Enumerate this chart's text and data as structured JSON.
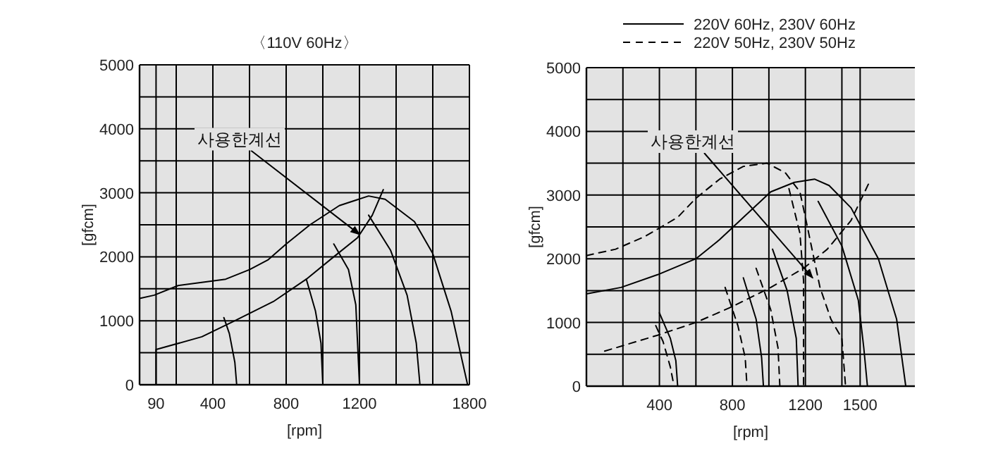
{
  "chart_data": [
    {
      "type": "line",
      "title": "〈110V 60Hz〉",
      "xlabel": "[rpm]",
      "ylabel": "[gfcm]",
      "xlim": [
        0,
        1800
      ],
      "ylim": [
        0,
        5000
      ],
      "xticks": [
        90,
        {
          "value": 200,
          "label": null
        },
        400,
        {
          "value": 600,
          "label": null
        },
        800,
        {
          "value": 1000,
          "label": null
        },
        1200,
        {
          "value": 1400,
          "label": null
        },
        {
          "value": 1600,
          "label": null
        },
        1800
      ],
      "yticks": [
        0,
        {
          "value": 500,
          "label": null
        },
        1000,
        {
          "value": 1500,
          "label": null
        },
        2000,
        {
          "value": 2500,
          "label": null
        },
        3000,
        {
          "value": 3500,
          "label": null
        },
        4000,
        {
          "value": 4500,
          "label": null
        },
        5000
      ],
      "grid": true,
      "line_style": "solid",
      "series": [
        {
          "color": "#000000",
          "x": [
            0,
            80,
            210,
            470,
            600,
            700,
            800,
            930,
            1090,
            1250,
            1340,
            1500,
            1600,
            1700,
            1790
          ],
          "values": [
            1350,
            1400,
            1550,
            1650,
            1800,
            1950,
            2200,
            2500,
            2800,
            2950,
            2900,
            2550,
            2050,
            1150,
            0
          ]
        },
        {
          "color": "#000000",
          "x": [
            90,
            90,
            340,
            520,
            730,
            910,
            1060,
            1190,
            1270,
            1330
          ],
          "values": [
            0,
            550,
            750,
            1000,
            1300,
            1650,
            2000,
            2300,
            2650,
            3050
          ]
        },
        {
          "color": "#000000",
          "x": [
            460,
            490,
            520,
            530
          ],
          "values": [
            1050,
            800,
            350,
            0
          ]
        },
        {
          "color": "#000000",
          "x": [
            910,
            960,
            990,
            1000
          ],
          "values": [
            1650,
            1150,
            650,
            0
          ]
        },
        {
          "color": "#000000",
          "x": [
            1060,
            1140,
            1180,
            1200
          ],
          "values": [
            2200,
            1800,
            1250,
            0
          ]
        },
        {
          "color": "#000000",
          "x": [
            1250,
            1370,
            1460,
            1510,
            1530
          ],
          "values": [
            2650,
            2100,
            1400,
            650,
            0
          ]
        }
      ],
      "annotations": [
        {
          "text": "사용한계선",
          "x": 1200,
          "y": 2350
        }
      ]
    },
    {
      "type": "line",
      "xlabel": "[rpm]",
      "ylabel": "[gfcm]",
      "xlim": [
        0,
        1800
      ],
      "ylim": [
        0,
        5000
      ],
      "xticks": [
        {
          "value": 200,
          "label": null
        },
        400,
        {
          "value": 600,
          "label": null
        },
        800,
        {
          "value": 1000,
          "label": null
        },
        1200,
        {
          "value": 1400,
          "label": null
        },
        1500
      ],
      "yticks": [
        0,
        {
          "value": 500,
          "label": null
        },
        1000,
        {
          "value": 1500,
          "label": null
        },
        2000,
        {
          "value": 2500,
          "label": null
        },
        3000,
        {
          "value": 3500,
          "label": null
        },
        4000,
        {
          "value": 4500,
          "label": null
        },
        5000
      ],
      "grid": true,
      "legend": "top",
      "series": [
        {
          "name": "220V 60Hz, 230V 60Hz",
          "line_style": "solid",
          "color": "#000000",
          "x": [
            0,
            190,
            390,
            600,
            730,
            860,
            1010,
            1140,
            1250,
            1330,
            1450,
            1600,
            1700,
            1750
          ],
          "values": [
            1450,
            1550,
            1750,
            2000,
            2300,
            2650,
            3050,
            3200,
            3250,
            3150,
            2800,
            2000,
            1050,
            0
          ]
        },
        {
          "line_style": "solid",
          "color": "#000000",
          "x": [
            400,
            460,
            490,
            500
          ],
          "values": [
            1150,
            750,
            400,
            0
          ]
        },
        {
          "line_style": "solid",
          "color": "#000000",
          "x": [
            860,
            930,
            960,
            970
          ],
          "values": [
            1700,
            1050,
            450,
            0
          ]
        },
        {
          "line_style": "solid",
          "color": "#000000",
          "x": [
            1020,
            1100,
            1150,
            1160
          ],
          "values": [
            2150,
            1500,
            750,
            0
          ]
        },
        {
          "line_style": "solid",
          "color": "#000000",
          "x": [
            1270,
            1400,
            1490,
            1520,
            1540
          ],
          "values": [
            2900,
            2200,
            1350,
            600,
            0
          ]
        },
        {
          "name": "220V 50Hz, 230V 50Hz",
          "line_style": "dashed",
          "color": "#000000",
          "x": [
            0,
            160,
            320,
            500,
            600,
            730,
            860,
            990,
            1090,
            1170,
            1200,
            1240,
            1280,
            1340,
            1400,
            1420
          ],
          "values": [
            2050,
            2150,
            2350,
            2650,
            2950,
            3250,
            3450,
            3500,
            3350,
            3050,
            2650,
            2100,
            1550,
            1050,
            750,
            0
          ]
        },
        {
          "line_style": "dashed",
          "color": "#000000",
          "x": [
            100,
            390,
            600,
            800,
            1010,
            1190,
            1320,
            1450,
            1550
          ],
          "values": [
            550,
            800,
            1000,
            1250,
            1550,
            1850,
            2150,
            2600,
            3200
          ]
        },
        {
          "line_style": "dashed",
          "color": "#000000",
          "x": [
            380,
            420,
            460,
            480
          ],
          "values": [
            950,
            700,
            300,
            0
          ]
        },
        {
          "line_style": "dashed",
          "color": "#000000",
          "x": [
            760,
            830,
            870,
            880
          ],
          "values": [
            1550,
            950,
            450,
            0
          ]
        },
        {
          "line_style": "dashed",
          "color": "#000000",
          "x": [
            930,
            1010,
            1050,
            1060
          ],
          "values": [
            1850,
            1200,
            600,
            0
          ]
        },
        {
          "line_style": "dashed",
          "color": "#000000",
          "x": [
            1110,
            1170,
            1190,
            1190
          ],
          "values": [
            3100,
            2400,
            1650,
            0
          ]
        }
      ],
      "annotations": [
        {
          "text": "사용한계선",
          "x": 1240,
          "y": 1700
        }
      ]
    }
  ]
}
